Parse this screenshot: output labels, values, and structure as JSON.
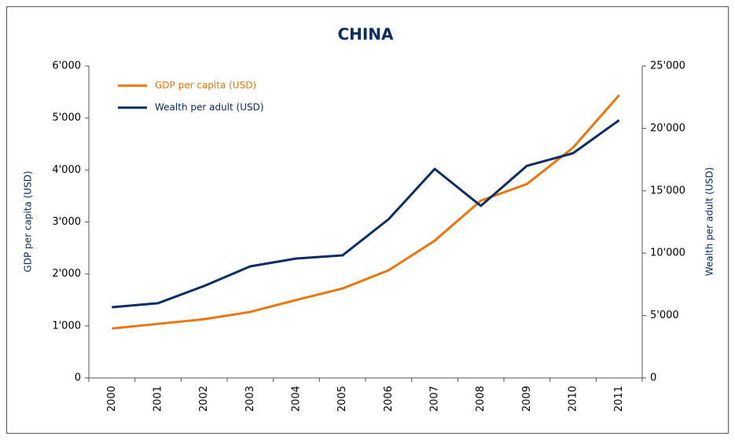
{
  "chart_data": {
    "type": "line",
    "title": "CHINA",
    "categories": [
      "2000",
      "2001",
      "2002",
      "2003",
      "2004",
      "2005",
      "2006",
      "2007",
      "2008",
      "2009",
      "2010",
      "2011"
    ],
    "series": [
      {
        "name": "GDP per capita (USD)",
        "color": "#e8770e",
        "values": [
          950,
          1040,
          1130,
          1270,
          1500,
          1720,
          2070,
          2640,
          3410,
          3730,
          4430,
          5440
        ]
      },
      {
        "name": "Wealth per adult (USD)",
        "color": "#0b2d63",
        "axis": "y2",
        "values": [
          5670,
          5990,
          7370,
          8940,
          9570,
          9820,
          12720,
          16750,
          13790,
          17000,
          18010,
          20660
        ]
      }
    ],
    "ylabel": "GDP per capita (USD)",
    "y2label": "Wealth per adult (USD)",
    "ylim": [
      0,
      6000
    ],
    "yticks": [
      0,
      {
        "value": 1000,
        "label": "1'000"
      },
      {
        "value": 2000,
        "label": "2'000"
      },
      {
        "value": 3000,
        "label": "3'000"
      },
      {
        "value": 4000,
        "label": "4'000"
      },
      {
        "value": 5000,
        "label": "5'000"
      },
      {
        "value": 6000,
        "label": "6'000"
      }
    ],
    "y2lim": [
      0,
      25000
    ],
    "y2ticks": [
      0,
      {
        "value": 5000,
        "label": "5'000"
      },
      {
        "value": 10000,
        "label": "10'000"
      },
      {
        "value": 15000,
        "label": "15'000"
      },
      {
        "value": 20000,
        "label": "20'000"
      },
      {
        "value": 25000,
        "label": "25'000"
      }
    ],
    "legend": "upper left",
    "grid": false
  }
}
